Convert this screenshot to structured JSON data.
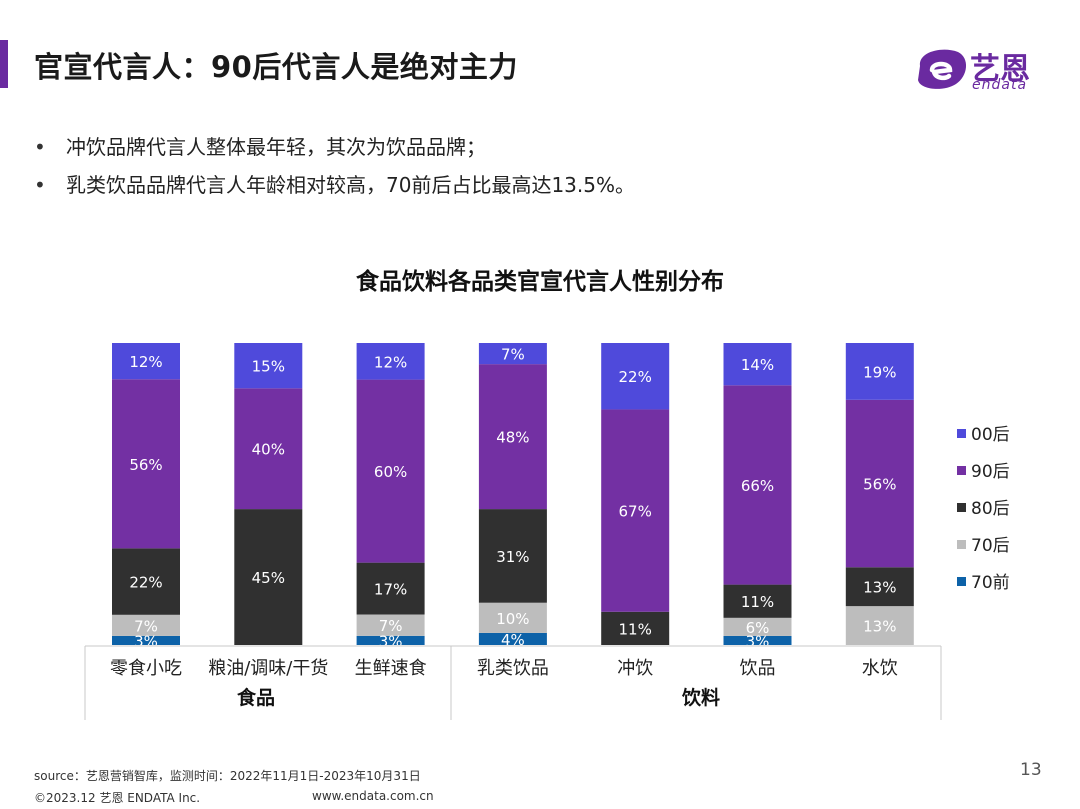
{
  "header": {
    "title": "官宣代言人：90后代言人是绝对主力",
    "logo_cn": "艺恩",
    "logo_en": "endata"
  },
  "bullets": [
    "冲饮品牌代言人整体最年轻，其次为饮品品牌；",
    "乳类饮品品牌代言人年龄相对较高，70前后占比最高达13.5%。"
  ],
  "colors": {
    "accent": "#6a2aa0",
    "s00": "#4f4adb",
    "s90": "#7330a3",
    "s80": "#303030",
    "s70": "#bdbdbd",
    "s70pre": "#0d62a8"
  },
  "chart_data": {
    "type": "bar",
    "stacked": true,
    "normalized": true,
    "title": "食品饮料各品类官宣代言人性别分布",
    "categories": [
      "零食小吃",
      "粮油/调味/干货",
      "生鲜速食",
      "乳类饮品",
      "冲饮",
      "饮品",
      "水饮"
    ],
    "groups": [
      {
        "label": "食品",
        "categories": [
          "零食小吃",
          "粮油/调味/干货",
          "生鲜速食"
        ]
      },
      {
        "label": "饮料",
        "categories": [
          "乳类饮品",
          "冲饮",
          "饮品",
          "水饮"
        ]
      }
    ],
    "series": [
      {
        "name": "70前",
        "color": "#0d62a8",
        "values": [
          3,
          0,
          3,
          4,
          0,
          3,
          0
        ],
        "labels": [
          "3%",
          "",
          "3%",
          "4%",
          "",
          "3%",
          ""
        ]
      },
      {
        "name": "70后",
        "color": "#bdbdbd",
        "values": [
          7,
          0,
          7,
          10,
          0,
          6,
          13
        ],
        "labels": [
          "7%",
          "",
          "7%",
          "10%",
          "",
          "6%",
          "13%"
        ]
      },
      {
        "name": "80后",
        "color": "#303030",
        "values": [
          22,
          45,
          17,
          31,
          11,
          11,
          13
        ],
        "labels": [
          "22%",
          "45%",
          "17%",
          "31%",
          "11%",
          "11%",
          "13%"
        ]
      },
      {
        "name": "90后",
        "color": "#7330a3",
        "values": [
          56,
          40,
          60,
          48,
          67,
          66,
          56
        ],
        "labels": [
          "56%",
          "40%",
          "60%",
          "48%",
          "67%",
          "66%",
          "56%"
        ]
      },
      {
        "name": "00后",
        "color": "#4f4adb",
        "values": [
          12,
          15,
          12,
          7,
          22,
          14,
          19
        ],
        "labels": [
          "12%",
          "15%",
          "12%",
          "7%",
          "22%",
          "14%",
          "19%"
        ]
      }
    ],
    "legend": {
      "position": "right",
      "order": [
        "00后",
        "90后",
        "80后",
        "70后",
        "70前"
      ]
    },
    "ylim": [
      0,
      100
    ],
    "grid": false
  },
  "footer": {
    "source": "source：艺恩营销智库，监测时间：2022年11月1日-2023年10月31日",
    "copyright": "©2023.12  艺恩 ENDATA Inc.",
    "website": "www.endata.com.cn",
    "page_number": "13"
  }
}
